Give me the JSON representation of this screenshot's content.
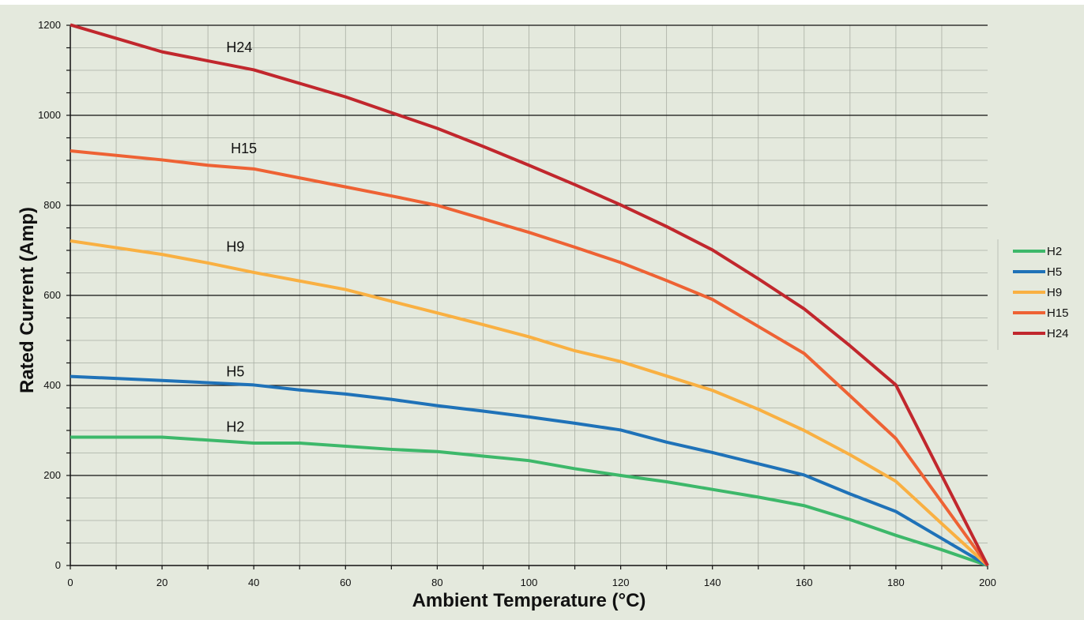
{
  "chart_data": {
    "type": "line",
    "title": "",
    "xlabel": "Ambient Temperature (°C)",
    "ylabel": "Rated Current (Amp)",
    "xlim": [
      0,
      200
    ],
    "ylim": [
      0,
      1200
    ],
    "x_ticks": [
      0,
      20,
      40,
      60,
      80,
      100,
      120,
      140,
      160,
      180,
      200
    ],
    "y_ticks": [
      0,
      200,
      400,
      600,
      800,
      1000,
      1200
    ],
    "grid": true,
    "legend_position": "right",
    "series": [
      {
        "name": "H2",
        "color": "#3db86a",
        "x": [
          0,
          20,
          40,
          50,
          70,
          80,
          90,
          100,
          110,
          120,
          130,
          140,
          150,
          160,
          170,
          180,
          190,
          200
        ],
        "y": [
          285,
          285,
          272,
          272,
          258,
          253,
          243,
          233,
          215,
          200,
          186,
          169,
          152,
          133,
          102,
          67,
          35,
          0
        ]
      },
      {
        "name": "H5",
        "color": "#1f72b8",
        "x": [
          0,
          20,
          40,
          50,
          60,
          70,
          80,
          90,
          100,
          110,
          120,
          130,
          140,
          150,
          160,
          170,
          180,
          190,
          200
        ],
        "y": [
          420,
          411,
          401,
          390,
          381,
          369,
          355,
          343,
          330,
          316,
          301,
          274,
          251,
          226,
          201,
          159,
          120,
          60,
          0
        ]
      },
      {
        "name": "H9",
        "color": "#f9b042",
        "x": [
          0,
          20,
          30,
          40,
          50,
          60,
          70,
          80,
          90,
          100,
          110,
          120,
          130,
          140,
          150,
          160,
          170,
          180,
          190,
          200
        ],
        "y": [
          721,
          691,
          672,
          651,
          632,
          613,
          587,
          561,
          535,
          508,
          477,
          453,
          421,
          389,
          347,
          300,
          246,
          187,
          93,
          0
        ]
      },
      {
        "name": "H15",
        "color": "#ee6234",
        "x": [
          0,
          20,
          30,
          40,
          50,
          60,
          70,
          80,
          90,
          100,
          110,
          120,
          130,
          140,
          150,
          160,
          170,
          180,
          190,
          200
        ],
        "y": [
          921,
          901,
          889,
          881,
          861,
          841,
          821,
          800,
          770,
          740,
          707,
          673,
          633,
          591,
          531,
          471,
          377,
          282,
          141,
          0
        ]
      },
      {
        "name": "H24",
        "color": "#c1272d",
        "x": [
          0,
          20,
          30,
          40,
          50,
          60,
          70,
          80,
          90,
          100,
          110,
          120,
          130,
          140,
          150,
          160,
          170,
          180,
          190,
          200
        ],
        "y": [
          1201,
          1141,
          1121,
          1101,
          1071,
          1041,
          1006,
          971,
          931,
          889,
          846,
          801,
          753,
          701,
          637,
          570,
          488,
          401,
          200,
          0
        ]
      }
    ],
    "annotations": [
      {
        "text": "H24",
        "x": 34,
        "y": 1140
      },
      {
        "text": "H15",
        "x": 35,
        "y": 916
      },
      {
        "text": "H9",
        "x": 34,
        "y": 697
      },
      {
        "text": "H5",
        "x": 34,
        "y": 420
      },
      {
        "text": "H2",
        "x": 34,
        "y": 297
      }
    ]
  }
}
